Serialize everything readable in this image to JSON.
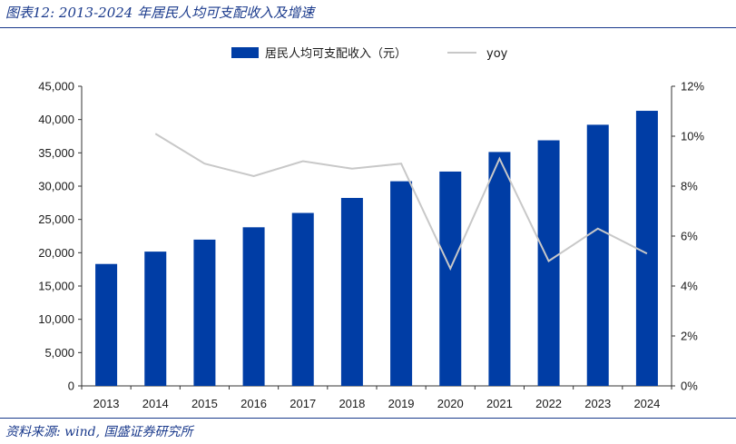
{
  "header": {
    "title": "图表12: 2013-2024 年居民人均可支配收入及增速"
  },
  "footer": {
    "source": "资料来源: wind, 国盛证券研究所"
  },
  "chart_data": {
    "type": "bar",
    "categories": [
      "2013",
      "2014",
      "2015",
      "2016",
      "2017",
      "2018",
      "2019",
      "2020",
      "2021",
      "2022",
      "2023",
      "2024"
    ],
    "series": [
      {
        "name": "居民人均可支配收入（元）",
        "type": "bar",
        "axis": "left",
        "color": "#003da5",
        "values": [
          18311,
          20167,
          21966,
          23821,
          25974,
          28228,
          30733,
          32189,
          35128,
          36883,
          39218,
          41314
        ]
      },
      {
        "name": "yoy",
        "type": "line",
        "axis": "right",
        "color": "#c8c8c8",
        "values": [
          null,
          10.1,
          8.9,
          8.4,
          9.0,
          8.7,
          8.9,
          4.7,
          9.1,
          5.0,
          6.3,
          5.3
        ]
      }
    ],
    "ylim_left": [
      0,
      45000
    ],
    "yticks_left": [
      "0",
      "5,000",
      "10,000",
      "15,000",
      "20,000",
      "25,000",
      "30,000",
      "35,000",
      "40,000",
      "45,000"
    ],
    "ylim_right": [
      0,
      12
    ],
    "yticks_right": [
      "0%",
      "2%",
      "4%",
      "6%",
      "8%",
      "10%",
      "12%"
    ],
    "legend_position": "top-center",
    "grid": false
  }
}
